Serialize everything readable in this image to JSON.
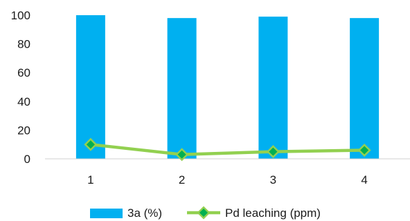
{
  "chart_data": {
    "type": "bar",
    "categories": [
      "1",
      "2",
      "3",
      "4"
    ],
    "ylim": [
      0,
      100
    ],
    "yticks": [
      0,
      20,
      40,
      60,
      80,
      100
    ],
    "grid": false,
    "legend_position": "bottom",
    "series": [
      {
        "name": "3a (%)",
        "kind": "bar",
        "color": "#00b0f0",
        "values": [
          100,
          98,
          99,
          98
        ]
      },
      {
        "name": "Pd leaching (ppm)",
        "kind": "line",
        "color": "#92d050",
        "marker": "diamond",
        "marker_color": "#00b050",
        "values": [
          10,
          3,
          5,
          6
        ]
      }
    ]
  }
}
